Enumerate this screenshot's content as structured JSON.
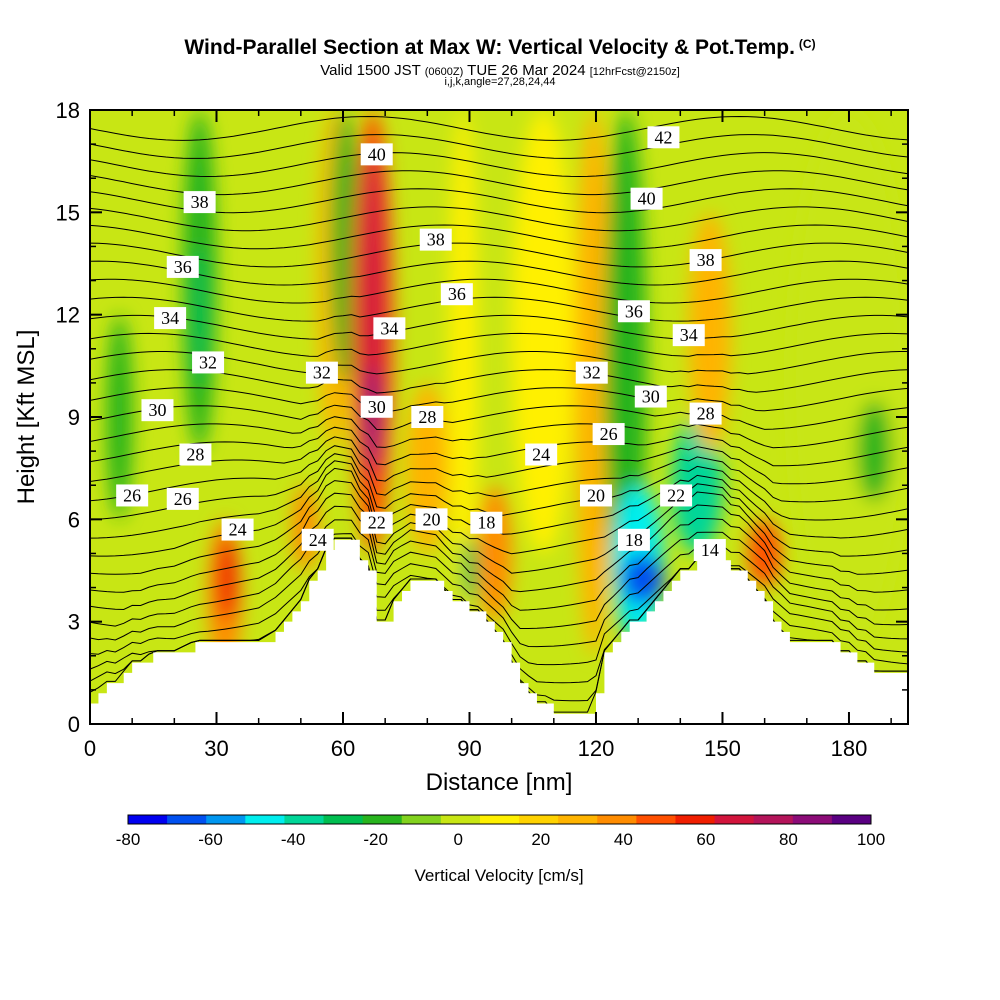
{
  "chart_data": {
    "type": "heatmap",
    "title": "Wind-Parallel Section at Max W: Vertical Velocity & Pot.Temp.",
    "title_units": "(C)",
    "subtitle_prefix": "Valid 1500 JST",
    "subtitle_utc": "(0600Z)",
    "subtitle_date": "TUE 26 Mar 2024",
    "subtitle_run": "[12hrFcst@2150z]",
    "params": "i,j,k,angle=27,28,24,44",
    "xlabel": "Distance [nm]",
    "ylabel": "Height [Kft MSL]",
    "xlim": [
      0,
      194
    ],
    "ylim": [
      0,
      18
    ],
    "x_ticks": [
      "0",
      "30",
      "60",
      "90",
      "120",
      "150",
      "180"
    ],
    "y_ticks": [
      "0",
      "3",
      "6",
      "9",
      "12",
      "15",
      "18"
    ],
    "colorbar": {
      "title": "Vertical Velocity [cm/s]",
      "levels": [
        -80,
        -70,
        -60,
        -50,
        -40,
        -30,
        -20,
        -10,
        0,
        10,
        20,
        30,
        40,
        50,
        60,
        70,
        80,
        90,
        100
      ],
      "tick_labels": [
        "-80",
        "-60",
        "-40",
        "-20",
        "0",
        "20",
        "40",
        "60",
        "80",
        "100"
      ],
      "colors": [
        "#0000f0",
        "#0050f0",
        "#0096f0",
        "#00eeee",
        "#00d698",
        "#00be50",
        "#28b41e",
        "#82d21e",
        "#c8e614",
        "#fff000",
        "#ffd200",
        "#ffb400",
        "#ff8c00",
        "#ff5000",
        "#f01e00",
        "#d2143c",
        "#b4145a",
        "#8c0c78",
        "#5a0082"
      ],
      "terrain_color": "#ffffff"
    },
    "vertical_velocity_cells": [
      {
        "x": [
          0,
          12
        ],
        "z": [
          0,
          18
        ],
        "w": 0
      },
      {
        "x": [
          4,
          10
        ],
        "z": [
          6,
          12
        ],
        "w": -15
      },
      {
        "x": [
          22,
          30
        ],
        "z": [
          8,
          18
        ],
        "w": -12
      },
      {
        "x": [
          24,
          28
        ],
        "z": [
          10,
          14
        ],
        "w": -25
      },
      {
        "x": [
          28,
          36
        ],
        "z": [
          1.5,
          6
        ],
        "w": 45
      },
      {
        "x": [
          30,
          35
        ],
        "z": [
          3,
          5.5
        ],
        "w": 60
      },
      {
        "x": [
          48,
          54
        ],
        "z": [
          4.5,
          7
        ],
        "w": 40
      },
      {
        "x": [
          54,
          62
        ],
        "z": [
          8,
          18
        ],
        "w": 30
      },
      {
        "x": [
          57,
          64
        ],
        "z": [
          10,
          18
        ],
        "w": -20
      },
      {
        "x": [
          62,
          72
        ],
        "z": [
          5,
          18
        ],
        "w": 50
      },
      {
        "x": [
          64,
          70
        ],
        "z": [
          7,
          17
        ],
        "w": 70
      },
      {
        "x": [
          65,
          69
        ],
        "z": [
          7.5,
          10.5
        ],
        "w": 90
      },
      {
        "x": [
          75,
          85
        ],
        "z": [
          5,
          10
        ],
        "w": 30
      },
      {
        "x": [
          85,
          92
        ],
        "z": [
          3,
          18
        ],
        "w": 10
      },
      {
        "x": [
          88,
          92
        ],
        "z": [
          3.5,
          5.5
        ],
        "w": -30
      },
      {
        "x": [
          92,
          100
        ],
        "z": [
          3,
          7
        ],
        "w": 40
      },
      {
        "x": [
          100,
          115
        ],
        "z": [
          5,
          18
        ],
        "w": 15
      },
      {
        "x": [
          115,
          124
        ],
        "z": [
          2,
          18
        ],
        "w": 30
      },
      {
        "x": [
          122,
          132
        ],
        "z": [
          2.5,
          18
        ],
        "w": -20
      },
      {
        "x": [
          124,
          136
        ],
        "z": [
          2.5,
          7
        ],
        "w": -45
      },
      {
        "x": [
          126,
          136
        ],
        "z": [
          3.5,
          5
        ],
        "w": -70
      },
      {
        "x": [
          138,
          150
        ],
        "z": [
          5,
          9
        ],
        "w": -40
      },
      {
        "x": [
          142,
          152
        ],
        "z": [
          8,
          15
        ],
        "w": 30
      },
      {
        "x": [
          156,
          164
        ],
        "z": [
          4,
          6
        ],
        "w": 55
      },
      {
        "x": [
          166,
          194
        ],
        "z": [
          2,
          18
        ],
        "w": 5
      },
      {
        "x": [
          182,
          190
        ],
        "z": [
          6.5,
          9.5
        ],
        "w": -15
      }
    ],
    "terrain_profile": {
      "x": [
        0,
        2,
        4,
        6,
        8,
        10,
        12,
        15,
        20,
        25,
        30,
        35,
        40,
        44,
        46,
        48,
        50,
        52,
        54,
        56,
        58,
        60,
        62,
        64,
        66,
        68,
        70,
        72,
        74,
        76,
        78,
        80,
        82,
        84,
        86,
        88,
        90,
        92,
        94,
        96,
        98,
        100,
        102,
        104,
        106,
        108,
        110,
        112,
        114,
        116,
        118,
        120,
        122,
        124,
        126,
        128,
        130,
        132,
        134,
        136,
        138,
        140,
        142,
        144,
        146,
        148,
        150,
        152,
        154,
        156,
        158,
        160,
        162,
        164,
        166,
        168,
        170,
        172,
        174,
        176,
        178,
        180,
        182,
        184,
        186,
        188,
        190,
        194
      ],
      "z": [
        0.6,
        0.9,
        1.2,
        1.2,
        1.5,
        1.8,
        1.8,
        2.1,
        2.1,
        2.4,
        2.4,
        2.4,
        2.4,
        2.7,
        3.0,
        3.3,
        3.6,
        4.2,
        4.5,
        5.1,
        5.4,
        5.4,
        5.4,
        4.8,
        4.5,
        3.0,
        3.0,
        3.6,
        3.9,
        4.2,
        4.2,
        4.2,
        4.2,
        3.9,
        3.6,
        3.6,
        3.3,
        3.3,
        3.0,
        2.7,
        2.4,
        1.8,
        1.2,
        0.9,
        0.6,
        0.6,
        0.3,
        0.3,
        0.3,
        0.3,
        0.3,
        0.9,
        2.1,
        2.4,
        2.7,
        3.0,
        3.0,
        3.3,
        3.6,
        3.9,
        4.2,
        4.5,
        4.5,
        4.8,
        4.8,
        4.8,
        4.8,
        4.5,
        4.5,
        4.2,
        3.9,
        3.6,
        3.0,
        2.7,
        2.4,
        2.4,
        2.4,
        2.4,
        2.4,
        2.4,
        2.1,
        2.1,
        1.8,
        1.8,
        1.5,
        1.5,
        1.5,
        1.5
      ]
    },
    "isentropes_C": [
      12,
      13,
      14,
      15,
      16,
      17,
      18,
      19,
      20,
      21,
      22,
      23,
      24,
      25,
      26,
      27,
      28,
      29,
      30,
      31,
      32,
      33,
      34,
      35,
      36,
      37,
      38,
      39,
      40,
      41,
      42,
      43,
      44
    ],
    "isentrope_labels": [
      {
        "text": "38",
        "x": 26,
        "z": 15.3
      },
      {
        "text": "36",
        "x": 22,
        "z": 13.4
      },
      {
        "text": "34",
        "x": 19,
        "z": 11.9
      },
      {
        "text": "32",
        "x": 28,
        "z": 10.6
      },
      {
        "text": "30",
        "x": 16,
        "z": 9.2
      },
      {
        "text": "28",
        "x": 25,
        "z": 7.9
      },
      {
        "text": "26",
        "x": 10,
        "z": 6.7
      },
      {
        "text": "26",
        "x": 22,
        "z": 6.6
      },
      {
        "text": "24",
        "x": 35,
        "z": 5.7
      },
      {
        "text": "24",
        "x": 54,
        "z": 5.4
      },
      {
        "text": "22",
        "x": 68,
        "z": 5.9
      },
      {
        "text": "20",
        "x": 81,
        "z": 6.0
      },
      {
        "text": "18",
        "x": 94,
        "z": 5.9
      },
      {
        "text": "32",
        "x": 55,
        "z": 10.3
      },
      {
        "text": "30",
        "x": 68,
        "z": 9.3
      },
      {
        "text": "28",
        "x": 80,
        "z": 9.0
      },
      {
        "text": "34",
        "x": 71,
        "z": 11.6
      },
      {
        "text": "36",
        "x": 87,
        "z": 12.6
      },
      {
        "text": "38",
        "x": 82,
        "z": 14.2
      },
      {
        "text": "40",
        "x": 68,
        "z": 16.7
      },
      {
        "text": "24",
        "x": 107,
        "z": 7.9
      },
      {
        "text": "20",
        "x": 120,
        "z": 6.7
      },
      {
        "text": "26",
        "x": 123,
        "z": 8.5
      },
      {
        "text": "32",
        "x": 119,
        "z": 10.3
      },
      {
        "text": "22",
        "x": 139,
        "z": 6.7
      },
      {
        "text": "18",
        "x": 129,
        "z": 5.4
      },
      {
        "text": "14",
        "x": 147,
        "z": 5.1
      },
      {
        "text": "28",
        "x": 146,
        "z": 9.1
      },
      {
        "text": "30",
        "x": 133,
        "z": 9.6
      },
      {
        "text": "34",
        "x": 142,
        "z": 11.4
      },
      {
        "text": "36",
        "x": 129,
        "z": 12.1
      },
      {
        "text": "38",
        "x": 146,
        "z": 13.6
      },
      {
        "text": "40",
        "x": 132,
        "z": 15.4
      },
      {
        "text": "42",
        "x": 136,
        "z": 17.2
      }
    ]
  }
}
